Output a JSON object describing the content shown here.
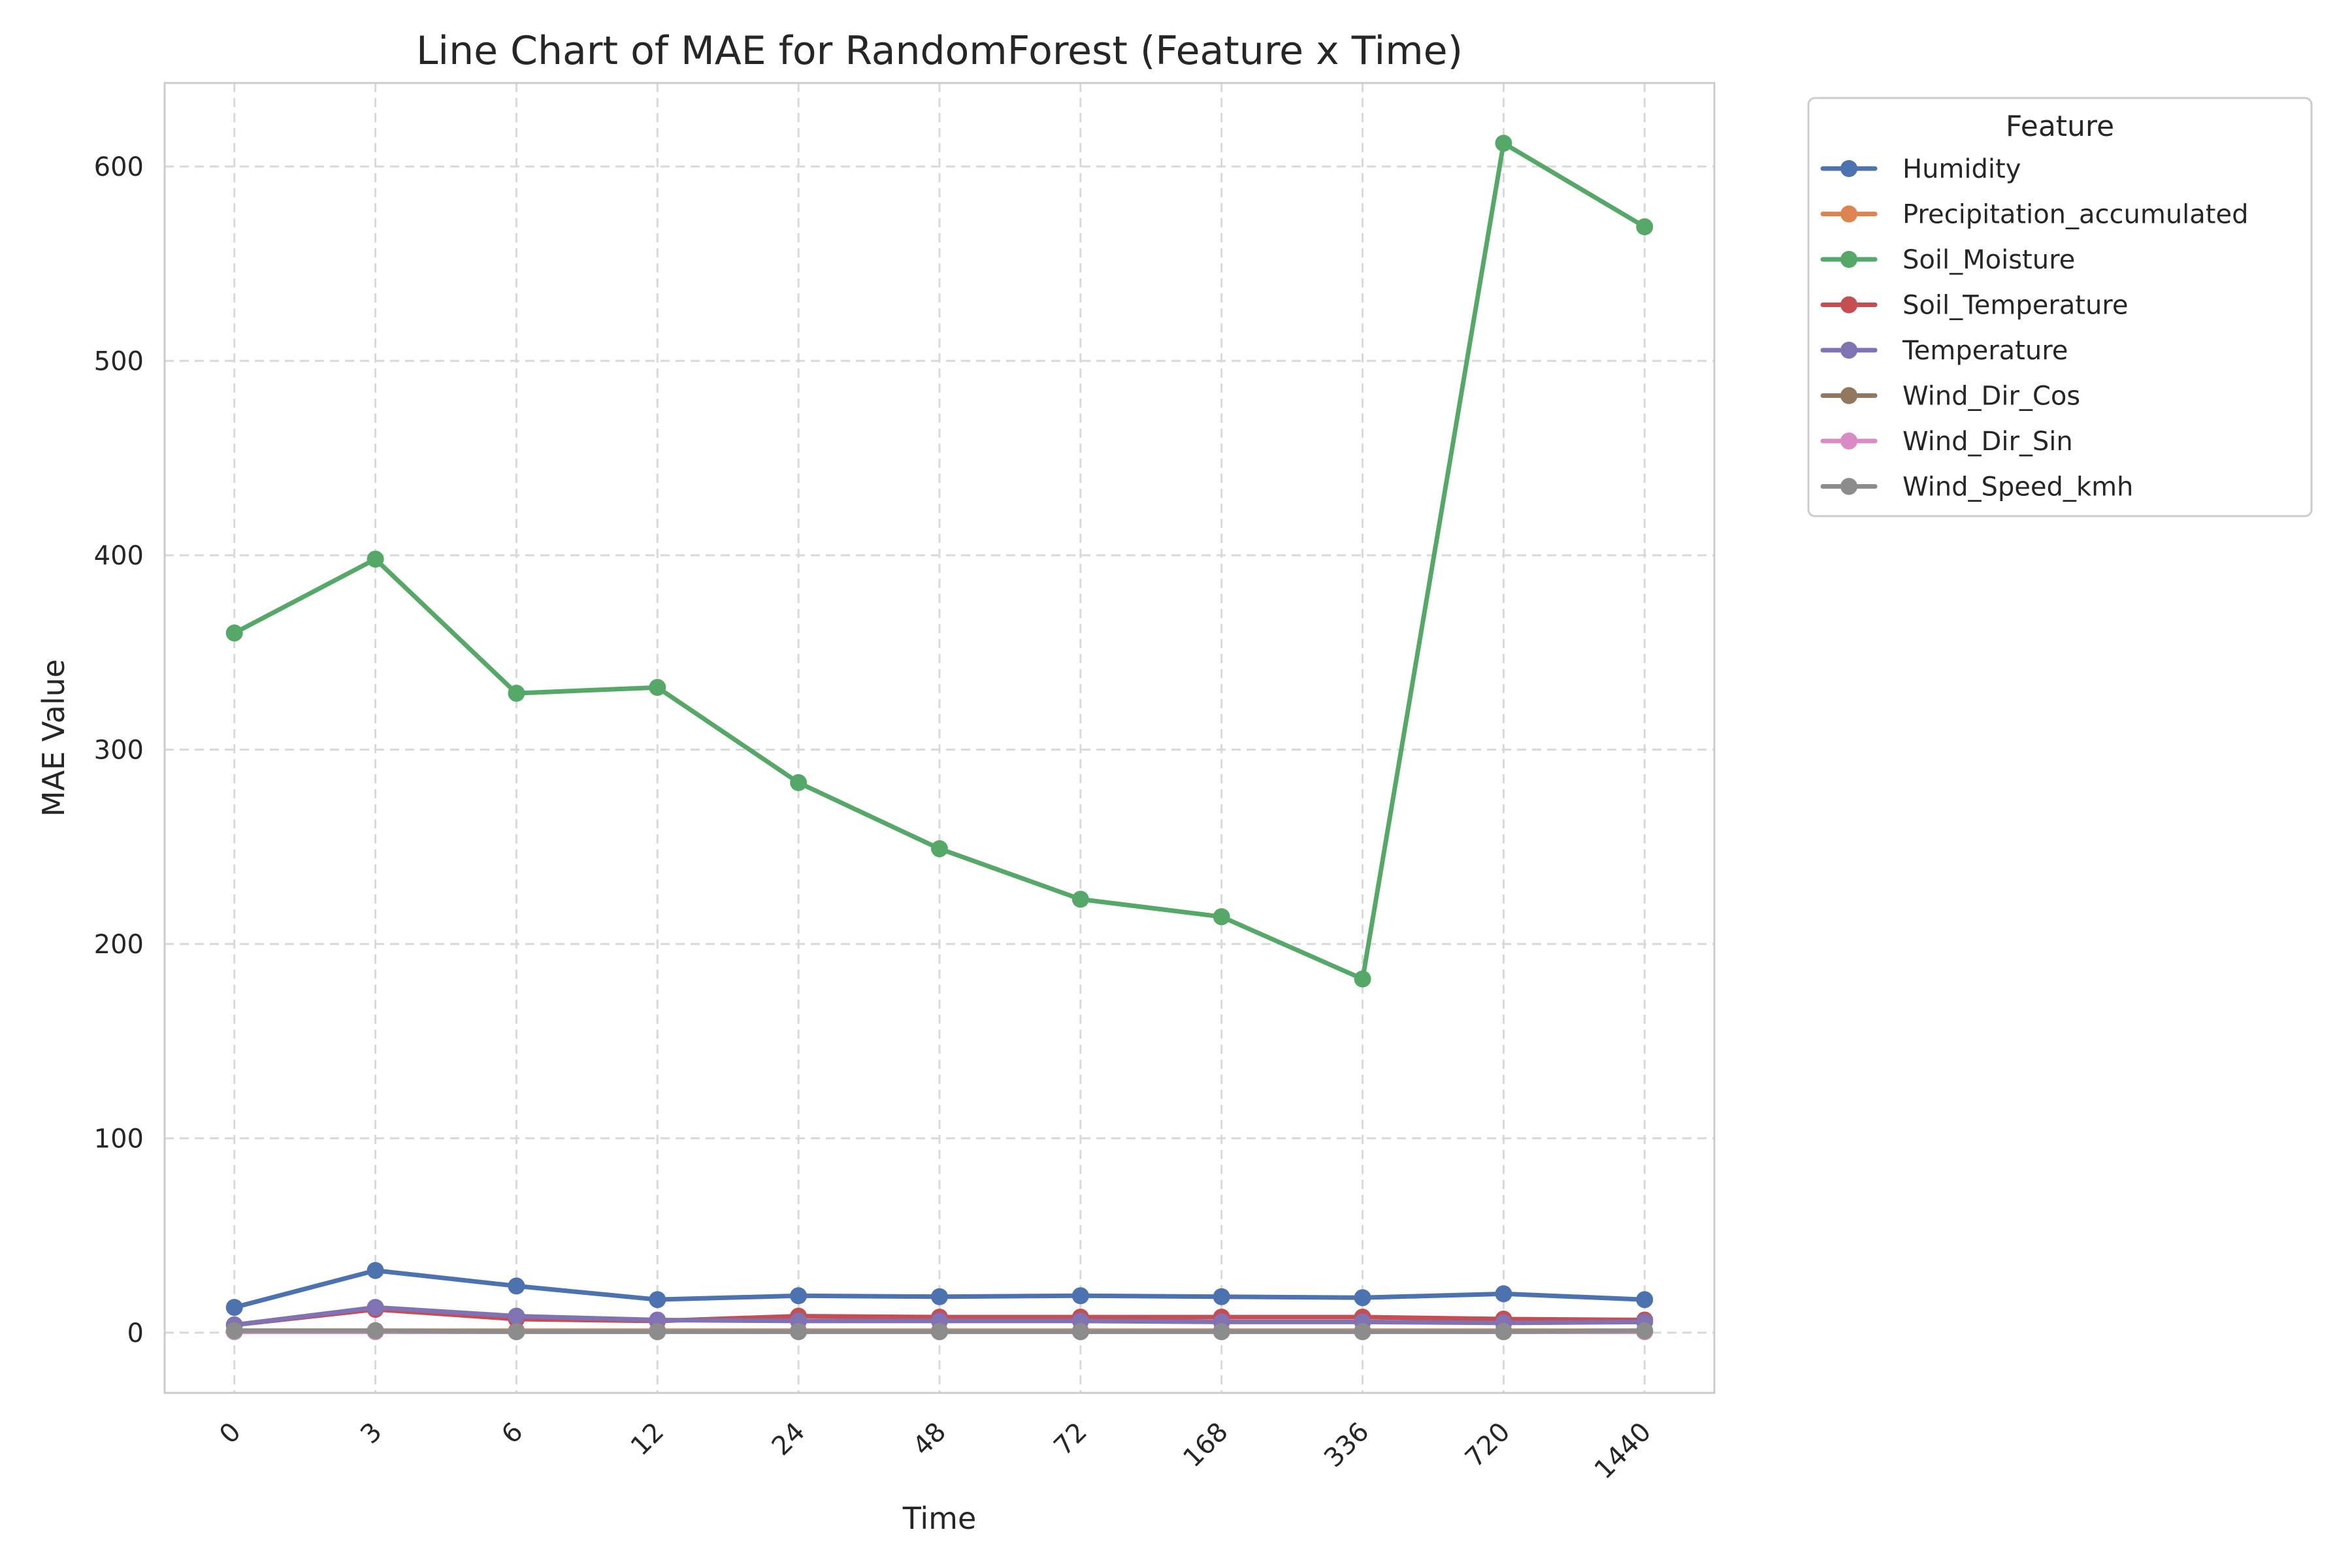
{
  "chart_data": {
    "type": "line",
    "title": "Line Chart of MAE for RandomForest (Feature x Time)",
    "xlabel": "Time",
    "ylabel": "MAE Value",
    "categories": [
      "0",
      "3",
      "6",
      "12",
      "24",
      "48",
      "72",
      "168",
      "336",
      "720",
      "1440"
    ],
    "y_ticks": [
      0,
      100,
      200,
      300,
      400,
      500,
      600
    ],
    "ylim": [
      -31,
      643
    ],
    "grid": true,
    "legend_title": "Feature",
    "legend_placement": "outside-top-right",
    "series": [
      {
        "name": "Humidity",
        "color": "#4c72b0",
        "values": [
          13,
          32,
          24,
          17,
          19,
          18.5,
          19,
          18.5,
          18,
          20,
          17
        ]
      },
      {
        "name": "Precipitation_accumulated",
        "color": "#dd8452",
        "values": [
          1,
          1,
          1,
          1,
          1,
          1,
          1,
          1,
          1,
          1,
          1
        ]
      },
      {
        "name": "Soil_Moisture",
        "color": "#55a868",
        "values": [
          360,
          398,
          329,
          332,
          283,
          249,
          223,
          214,
          182,
          612,
          569
        ]
      },
      {
        "name": "Soil_Temperature",
        "color": "#c44e52",
        "values": [
          4,
          12,
          7,
          6,
          8.5,
          8,
          8,
          8,
          8,
          7,
          6.5
        ]
      },
      {
        "name": "Temperature",
        "color": "#8172b3",
        "values": [
          4,
          13,
          8.5,
          6.5,
          6,
          6,
          6,
          5.5,
          5.5,
          5,
          5.5
        ]
      },
      {
        "name": "Wind_Dir_Cos",
        "color": "#937860",
        "values": [
          0.5,
          0.5,
          0.5,
          0.5,
          0.5,
          0.5,
          0.5,
          0.5,
          0.5,
          0.5,
          0.5
        ]
      },
      {
        "name": "Wind_Dir_Sin",
        "color": "#da8bc3",
        "values": [
          0.5,
          0.5,
          0.5,
          0.5,
          0.5,
          0.5,
          0.5,
          0.5,
          0.5,
          0.5,
          0.5
        ]
      },
      {
        "name": "Wind_Speed_kmh",
        "color": "#8c8c8c",
        "values": [
          1,
          1,
          0.5,
          0.5,
          0.5,
          0.5,
          0.5,
          0.5,
          0.5,
          0.5,
          1
        ]
      }
    ]
  }
}
